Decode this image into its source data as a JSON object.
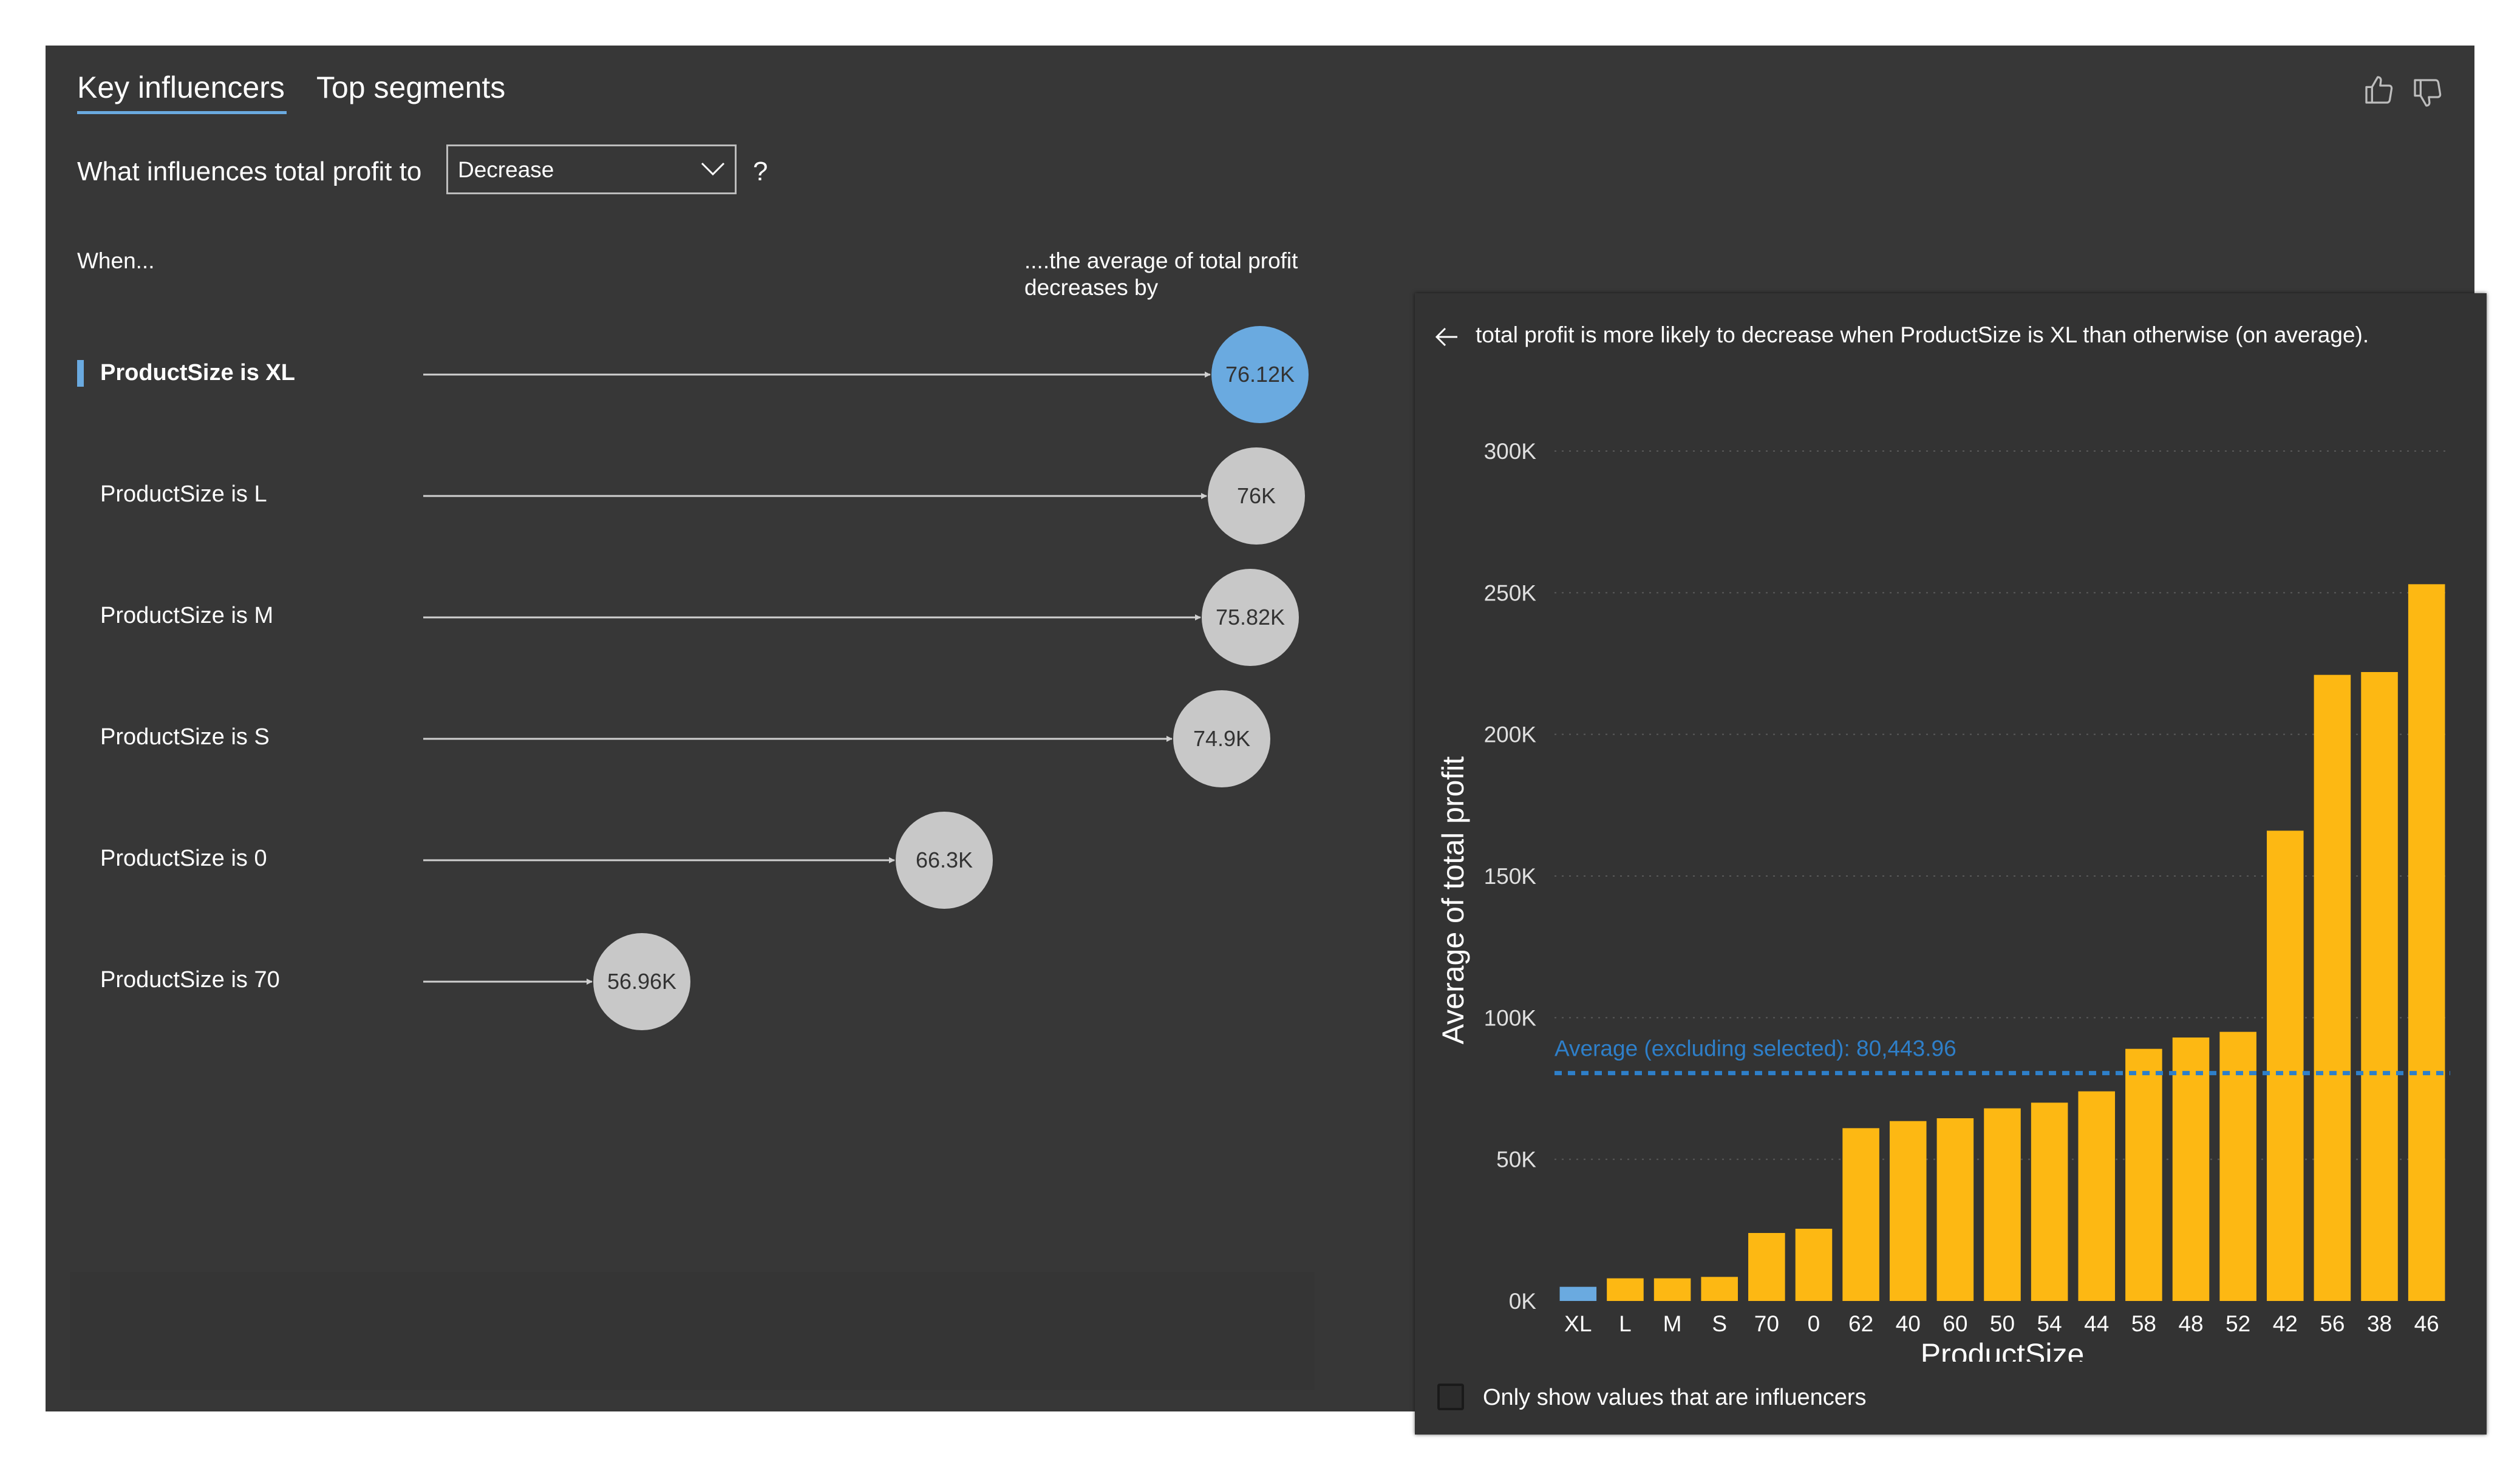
{
  "tabs": [
    {
      "label": "Key influencers",
      "active": true
    },
    {
      "label": "Top segments",
      "active": false
    }
  ],
  "feedback": {
    "thumbs_up_icon": "thumbs-up-icon",
    "thumbs_down_icon": "thumbs-down-icon"
  },
  "question": {
    "prefix": "What influences total profit to",
    "selected": "Decrease",
    "suffix": "?"
  },
  "columns": {
    "when": "When...",
    "effect": "....the average of total profit decreases by"
  },
  "influencers": [
    {
      "label": "ProductSize is XL",
      "value_label": "76.12K",
      "value": 76.12,
      "selected": true
    },
    {
      "label": "ProductSize is L",
      "value_label": "76K",
      "value": 76.0,
      "selected": false
    },
    {
      "label": "ProductSize is M",
      "value_label": "75.82K",
      "value": 75.82,
      "selected": false
    },
    {
      "label": "ProductSize is S",
      "value_label": "74.9K",
      "value": 74.9,
      "selected": false
    },
    {
      "label": "ProductSize is 0",
      "value_label": "66.3K",
      "value": 66.3,
      "selected": false
    },
    {
      "label": "ProductSize is 70",
      "value_label": "56.96K",
      "value": 56.96,
      "selected": false
    }
  ],
  "detail": {
    "back_icon": "back-arrow-icon",
    "title": "total profit is more likely to decrease when ProductSize is XL than otherwise (on average).",
    "checkbox_label": "Only show values that are influencers",
    "checkbox_checked": false
  },
  "chart_data": {
    "type": "bar",
    "xlabel": "ProductSize",
    "ylabel": "Average of total profit",
    "ylim": [
      0,
      300000
    ],
    "yticks": [
      0,
      50000,
      100000,
      150000,
      200000,
      250000,
      300000
    ],
    "ytick_labels": [
      "0K",
      "50K",
      "100K",
      "150K",
      "200K",
      "250K",
      "300K"
    ],
    "categories": [
      "XL",
      "L",
      "M",
      "S",
      "70",
      "0",
      "62",
      "40",
      "60",
      "50",
      "54",
      "44",
      "58",
      "48",
      "52",
      "42",
      "56",
      "38",
      "46"
    ],
    "values": [
      5000,
      8000,
      8000,
      8500,
      24000,
      25500,
      61000,
      63500,
      64500,
      68000,
      70000,
      74000,
      89000,
      93000,
      95000,
      166000,
      221000,
      222000,
      253000
    ],
    "highlight_index": 0,
    "highlight_color": "#6aaae0",
    "bar_color": "#fdb813",
    "reference_line": {
      "value": 80443.96,
      "label": "Average (excluding selected): 80,443.96",
      "color": "#2e7fc9"
    },
    "grid": true
  }
}
